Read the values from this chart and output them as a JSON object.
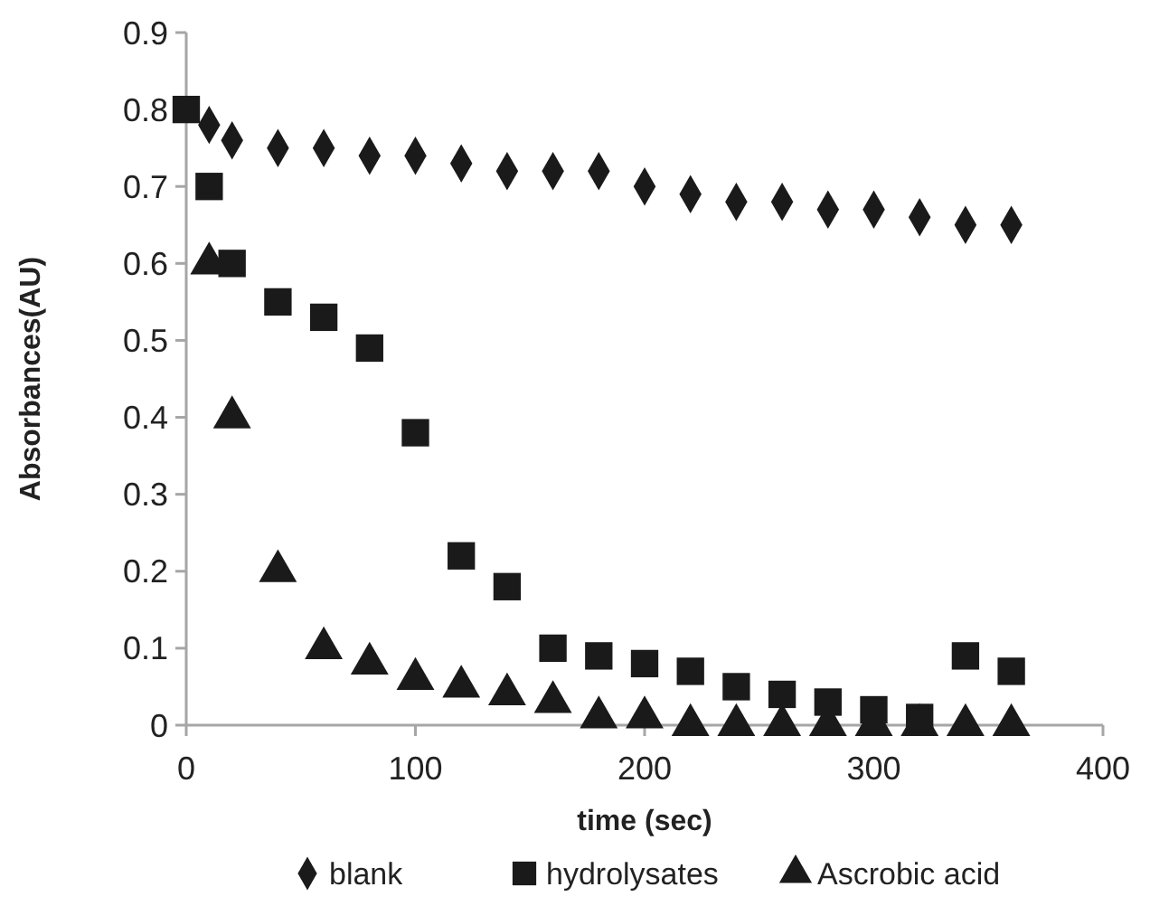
{
  "chart_data": {
    "type": "scatter",
    "xlabel": "time (sec)",
    "ylabel": "Absorbances(AU)",
    "xlim": [
      0,
      400
    ],
    "xticks": [
      0,
      100,
      200,
      300,
      400
    ],
    "ylim": [
      0,
      0.9
    ],
    "yticks": [
      0,
      0.1,
      0.2,
      0.3,
      0.4,
      0.5,
      0.6,
      0.7,
      0.8,
      0.9
    ],
    "grid": false,
    "legend": "bottom",
    "series": [
      {
        "name": "blank",
        "color": "#1a1a1a",
        "marker": "diamond",
        "x": [
          10,
          20,
          40,
          60,
          80,
          100,
          120,
          140,
          160,
          180,
          200,
          220,
          240,
          260,
          280,
          300,
          320,
          340,
          360
        ],
        "values": [
          0.78,
          0.76,
          0.75,
          0.75,
          0.74,
          0.74,
          0.73,
          0.72,
          0.72,
          0.72,
          0.7,
          0.69,
          0.68,
          0.68,
          0.67,
          0.67,
          0.66,
          0.65,
          0.65
        ]
      },
      {
        "name": "hydrolysates",
        "color": "#1a1a1a",
        "marker": "square",
        "x": [
          0,
          10,
          20,
          40,
          60,
          80,
          100,
          120,
          140,
          160,
          180,
          200,
          220,
          240,
          260,
          280,
          300,
          320,
          340,
          360
        ],
        "values": [
          0.8,
          0.7,
          0.6,
          0.55,
          0.53,
          0.49,
          0.38,
          0.22,
          0.18,
          0.1,
          0.09,
          0.08,
          0.07,
          0.05,
          0.04,
          0.03,
          0.02,
          0.01,
          0.09,
          0.07
        ]
      },
      {
        "name": "Ascrobic acid",
        "color": "#1a1a1a",
        "marker": "triangle",
        "x": [
          10,
          20,
          40,
          60,
          80,
          100,
          120,
          140,
          160,
          180,
          200,
          220,
          240,
          260,
          280,
          300,
          320,
          340,
          360
        ],
        "values": [
          0.6,
          0.4,
          0.2,
          0.1,
          0.08,
          0.06,
          0.05,
          0.04,
          0.03,
          0.01,
          0.01,
          0,
          0,
          0,
          0,
          0,
          0,
          0,
          0
        ]
      }
    ]
  }
}
